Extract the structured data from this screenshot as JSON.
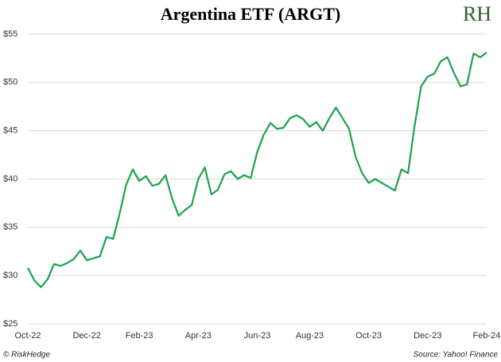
{
  "chart_data": {
    "type": "line",
    "title": "Argentina ETF (ARGT)",
    "logo": "RH",
    "credit": "© RiskHedge",
    "source": "Source: Yahoo! Finance",
    "categories": [
      "Oct-22",
      null,
      null,
      null,
      null,
      null,
      null,
      null,
      null,
      "Dec-22",
      null,
      null,
      null,
      null,
      null,
      null,
      null,
      "Feb-23",
      null,
      null,
      null,
      null,
      null,
      null,
      null,
      null,
      "Apr-23",
      null,
      null,
      null,
      null,
      null,
      null,
      null,
      null,
      "Jun-23",
      null,
      null,
      null,
      null,
      null,
      null,
      null,
      "Aug-23",
      null,
      null,
      null,
      null,
      null,
      null,
      null,
      null,
      "Oct-23",
      null,
      null,
      null,
      null,
      null,
      null,
      null,
      null,
      "Dec-23",
      null,
      null,
      null,
      null,
      null,
      null,
      null,
      null,
      "Feb-24"
    ],
    "series": [
      {
        "name": "ARGT",
        "color": "#1aa34a",
        "values": [
          30.8,
          29.5,
          28.8,
          29.6,
          31.2,
          31,
          31.3,
          31.7,
          32.6,
          31.6,
          31.8,
          32,
          34,
          33.8,
          36.4,
          39.4,
          41,
          39.8,
          40.3,
          39.3,
          39.5,
          40.4,
          38,
          36.2,
          36.8,
          37.3,
          40,
          41.2,
          38.4,
          38.9,
          40.5,
          40.8,
          40,
          40.4,
          40.1,
          42.8,
          44.6,
          45.8,
          45.2,
          45.3,
          46.3,
          46.6,
          46.2,
          45.4,
          45.9,
          45,
          46.3,
          47.4,
          46.3,
          45.2,
          42.3,
          40.6,
          39.6,
          40,
          39.6,
          39.2,
          38.8,
          41,
          40.6,
          45.5,
          49.6,
          50.6,
          50.9,
          52.2,
          52.6,
          51,
          49.6,
          49.8,
          53,
          52.6,
          53.1
        ]
      }
    ],
    "ylim": [
      25,
      55
    ],
    "yticks": [
      {
        "value": 25,
        "label": "$25"
      },
      {
        "value": 30,
        "label": "$30"
      },
      {
        "value": 35,
        "label": "$35"
      },
      {
        "value": 40,
        "label": "$40"
      },
      {
        "value": 45,
        "label": "$45"
      },
      {
        "value": 50,
        "label": "$50"
      },
      {
        "value": 55,
        "label": "$55"
      }
    ],
    "grid": true
  }
}
